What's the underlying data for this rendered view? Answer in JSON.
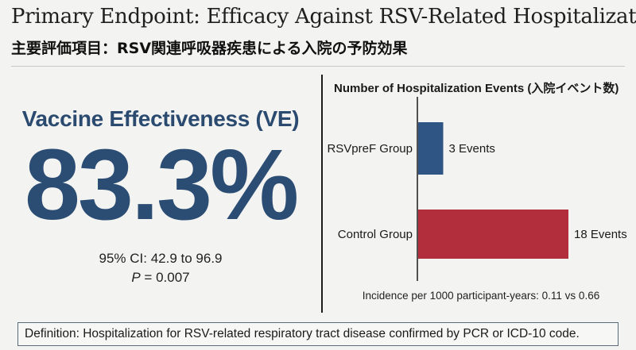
{
  "header": {
    "title_en": "Primary Endpoint: Efficacy Against RSV-Related Hospitalization",
    "title_jp": "主要評価項目：RSV関連呼吸器疾患による入院の予防効果"
  },
  "effectiveness": {
    "label": "Vaccine Effectiveness (VE)",
    "value": "83.3%",
    "ci": "95% CI: 42.9 to 96.9",
    "p_symbol": "P",
    "p_text": " = 0.007"
  },
  "chart_data": {
    "type": "bar",
    "orientation": "horizontal",
    "title": "Number of Hospitalization Events (入院イベント数)",
    "categories": [
      "RSVpreF Group",
      "Control Group"
    ],
    "values": [
      3,
      18
    ],
    "value_labels": [
      "3 Events",
      "18 Events"
    ],
    "colors": [
      "#2f5584",
      "#b22e3c"
    ],
    "xlim": [
      0,
      20
    ],
    "grid": false,
    "footnote": "Incidence per 1000 participant-years: 0.11 vs 0.66"
  },
  "definition": "Definition: Hospitalization for RSV-related respiratory tract disease confirmed by PCR or ICD-10 code."
}
